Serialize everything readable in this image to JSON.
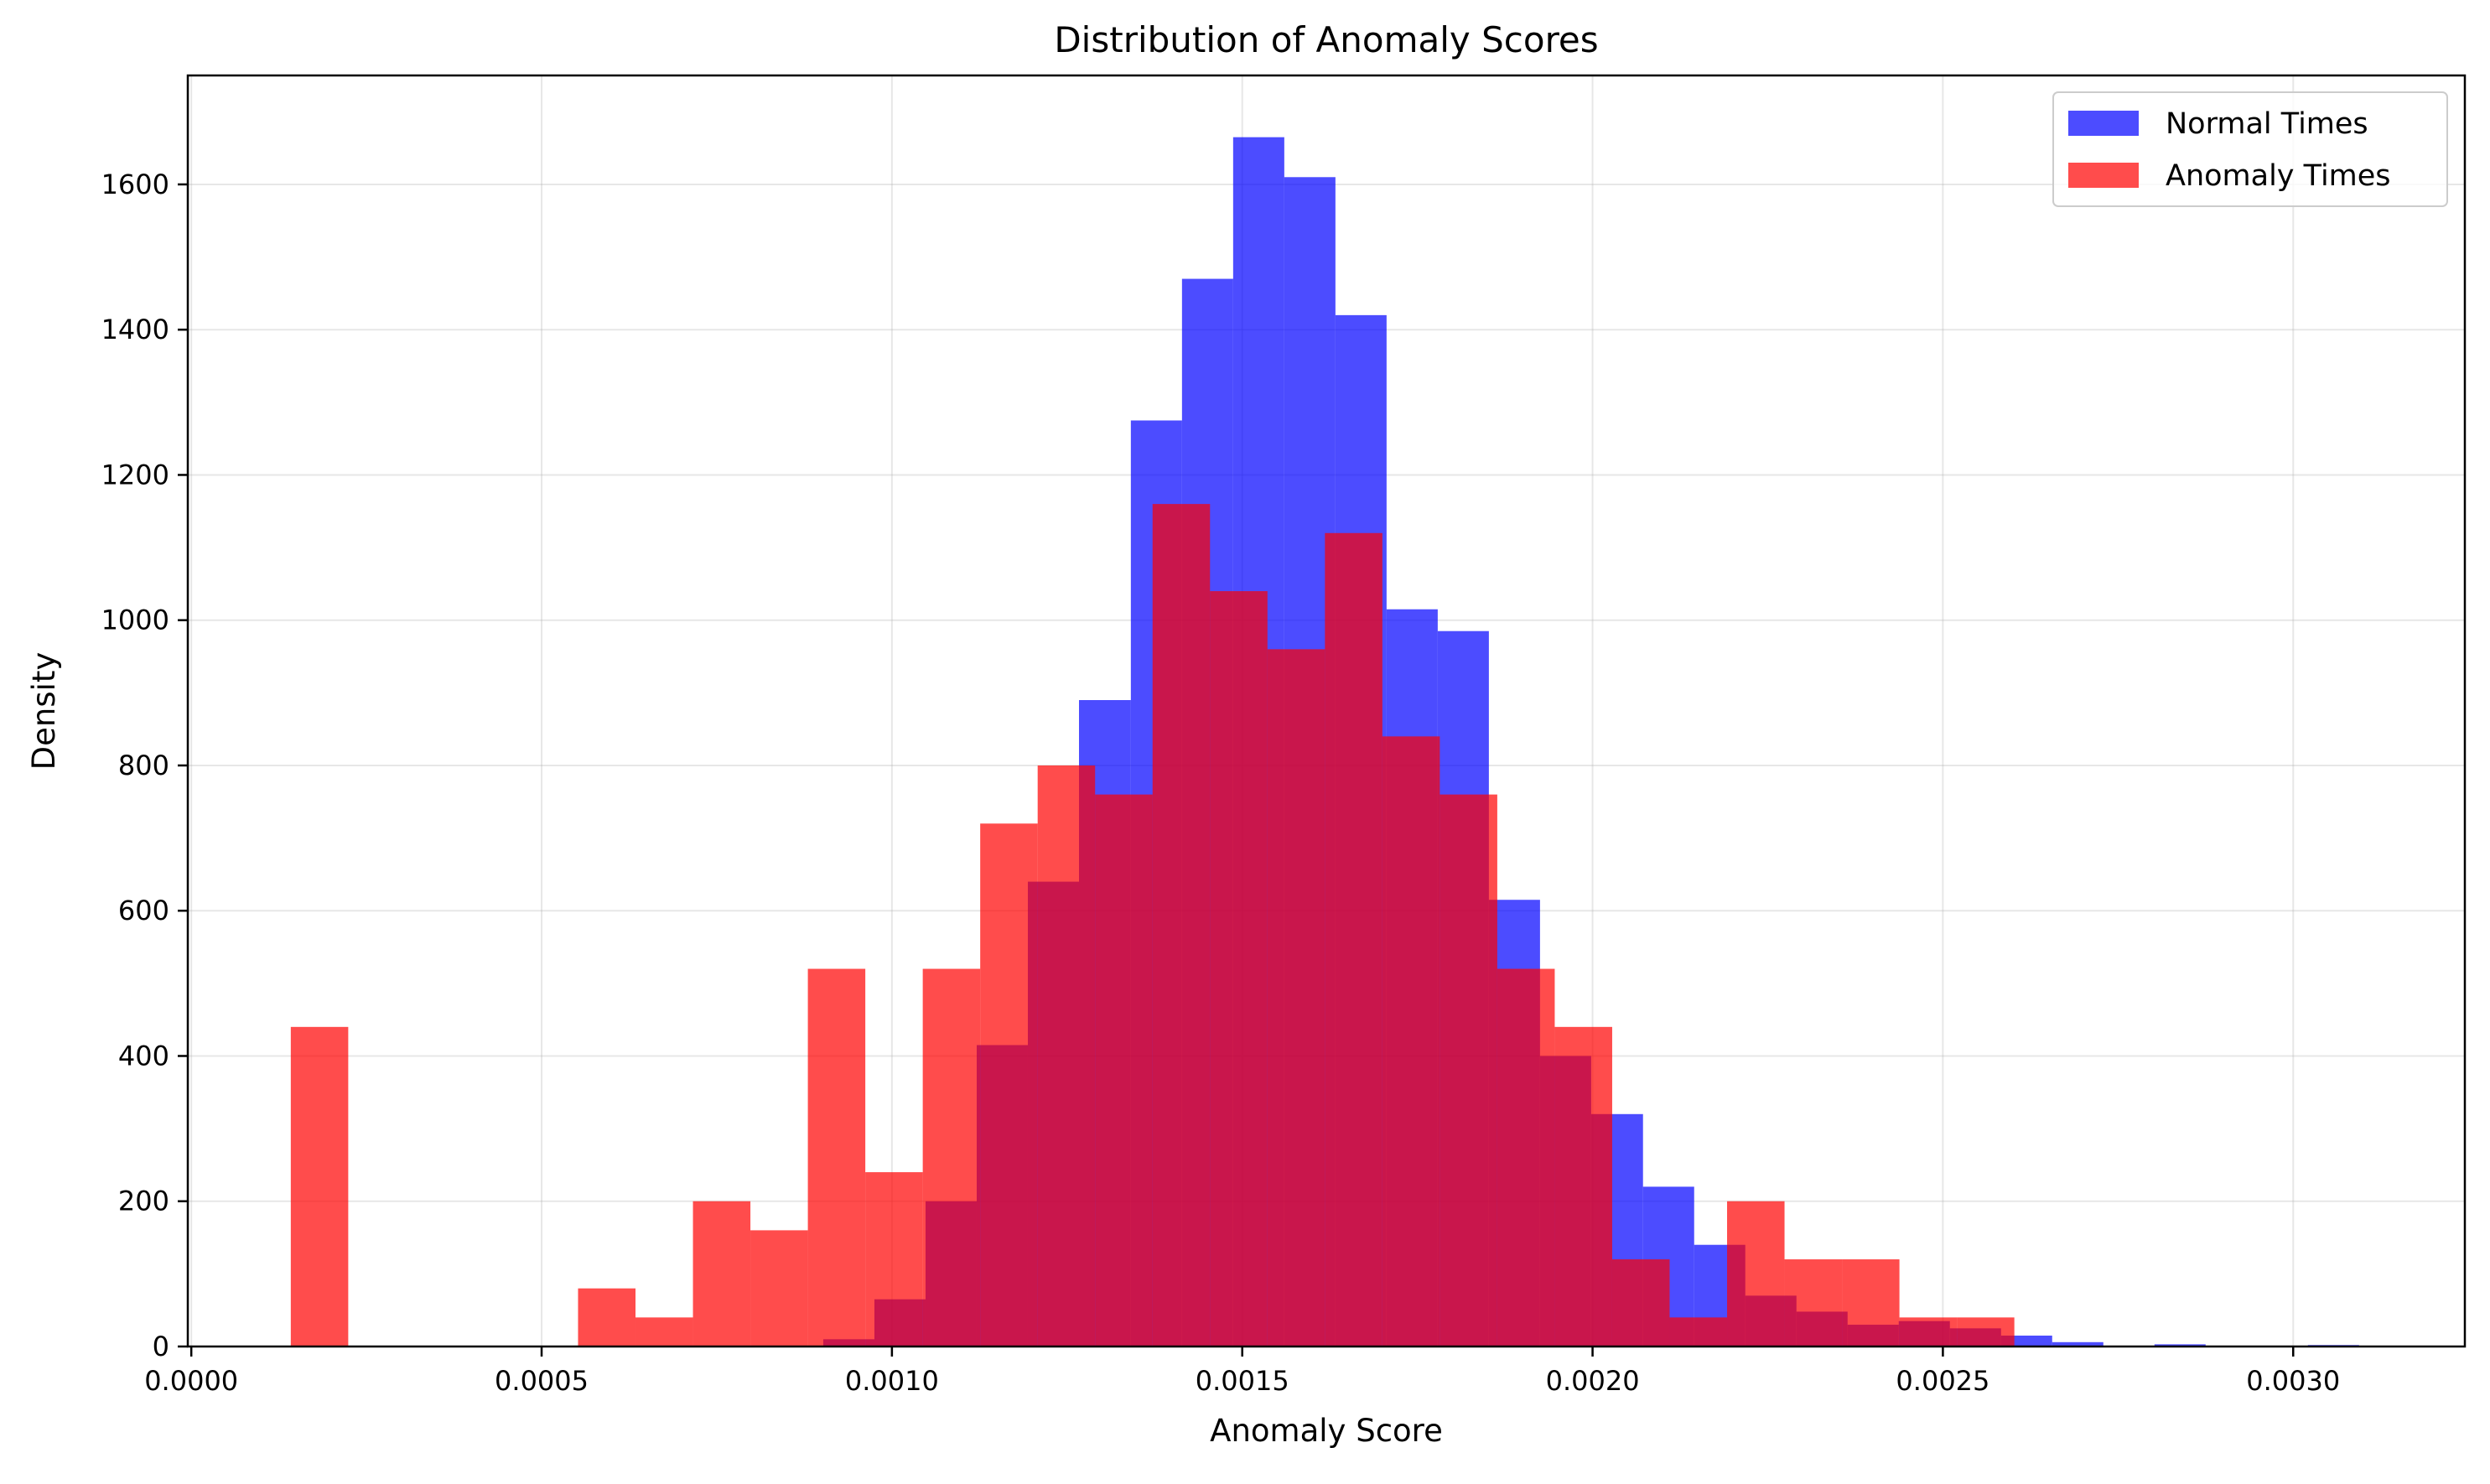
{
  "chart_data": {
    "type": "histogram",
    "title": "Distribution of Anomaly Scores",
    "xlabel": "Anomaly Score",
    "ylabel": "Density",
    "xlim": [
      -5e-06,
      0.003245
    ],
    "ylim": [
      0,
      1750
    ],
    "xticks": [
      0.0,
      0.0005,
      0.001,
      0.0015,
      0.002,
      0.0025,
      0.003
    ],
    "xtick_labels": [
      "0.0000",
      "0.0005",
      "0.0010",
      "0.0015",
      "0.0020",
      "0.0025",
      "0.0030"
    ],
    "yticks": [
      0,
      200,
      400,
      600,
      800,
      1000,
      1200,
      1400,
      1600
    ],
    "ytick_labels": [
      "0",
      "200",
      "400",
      "600",
      "800",
      "1000",
      "1200",
      "1400",
      "1600"
    ],
    "grid": true,
    "legend_position": "upper right",
    "series": [
      {
        "name": "Normal Times",
        "color": "#0000ff",
        "alpha": 0.7,
        "bins": [
          [
            0.000902,
            0.000975,
            10
          ],
          [
            0.000975,
            0.001048,
            65
          ],
          [
            0.001048,
            0.001121,
            200
          ],
          [
            0.001121,
            0.001194,
            415
          ],
          [
            0.001194,
            0.001267,
            640
          ],
          [
            0.001267,
            0.001341,
            890
          ],
          [
            0.001341,
            0.001414,
            1275
          ],
          [
            0.001414,
            0.001487,
            1470
          ],
          [
            0.001487,
            0.00156,
            1665
          ],
          [
            0.00156,
            0.001633,
            1610
          ],
          [
            0.001633,
            0.001706,
            1420
          ],
          [
            0.001706,
            0.001779,
            1015
          ],
          [
            0.001779,
            0.001852,
            985
          ],
          [
            0.001852,
            0.001925,
            615
          ],
          [
            0.001925,
            0.001998,
            400
          ],
          [
            0.001998,
            0.002072,
            320
          ],
          [
            0.002072,
            0.002145,
            220
          ],
          [
            0.002145,
            0.002218,
            140
          ],
          [
            0.002218,
            0.002291,
            70
          ],
          [
            0.002291,
            0.002364,
            48
          ],
          [
            0.002364,
            0.002437,
            30
          ],
          [
            0.002437,
            0.00251,
            35
          ],
          [
            0.00251,
            0.002583,
            25
          ],
          [
            0.002583,
            0.002656,
            15
          ],
          [
            0.002656,
            0.002729,
            6
          ],
          [
            0.002729,
            0.002802,
            1
          ],
          [
            0.002802,
            0.002875,
            3
          ],
          [
            0.002875,
            0.002948,
            1
          ],
          [
            0.002948,
            0.003021,
            1
          ],
          [
            0.003021,
            0.003094,
            2
          ]
        ]
      },
      {
        "name": "Anomaly Times",
        "color": "#ff0000",
        "alpha": 0.7,
        "bins": [
          [
            0.000142,
            0.000224,
            440
          ],
          [
            0.000224,
            0.000306,
            0
          ],
          [
            0.000306,
            0.000388,
            0
          ],
          [
            0.000388,
            0.00047,
            0
          ],
          [
            0.00047,
            0.000552,
            0
          ],
          [
            0.000552,
            0.000634,
            80
          ],
          [
            0.000634,
            0.000716,
            40
          ],
          [
            0.000716,
            0.000798,
            200
          ],
          [
            0.000798,
            0.00088,
            160
          ],
          [
            0.00088,
            0.000962,
            520
          ],
          [
            0.000962,
            0.001044,
            240
          ],
          [
            0.001044,
            0.001126,
            520
          ],
          [
            0.001126,
            0.001208,
            720
          ],
          [
            0.001208,
            0.00129,
            800
          ],
          [
            0.00129,
            0.001372,
            760
          ],
          [
            0.001372,
            0.001454,
            1160
          ],
          [
            0.001454,
            0.001536,
            1040
          ],
          [
            0.001536,
            0.001618,
            960
          ],
          [
            0.001618,
            0.0017,
            1120
          ],
          [
            0.0017,
            0.001782,
            840
          ],
          [
            0.001782,
            0.001864,
            760
          ],
          [
            0.001864,
            0.001946,
            520
          ],
          [
            0.001946,
            0.002028,
            440
          ],
          [
            0.002028,
            0.00211,
            120
          ],
          [
            0.00211,
            0.002192,
            40
          ],
          [
            0.002192,
            0.002274,
            200
          ],
          [
            0.002274,
            0.002356,
            120
          ],
          [
            0.002356,
            0.002438,
            120
          ],
          [
            0.002438,
            0.00252,
            40
          ],
          [
            0.00252,
            0.002602,
            40
          ]
        ]
      }
    ]
  }
}
